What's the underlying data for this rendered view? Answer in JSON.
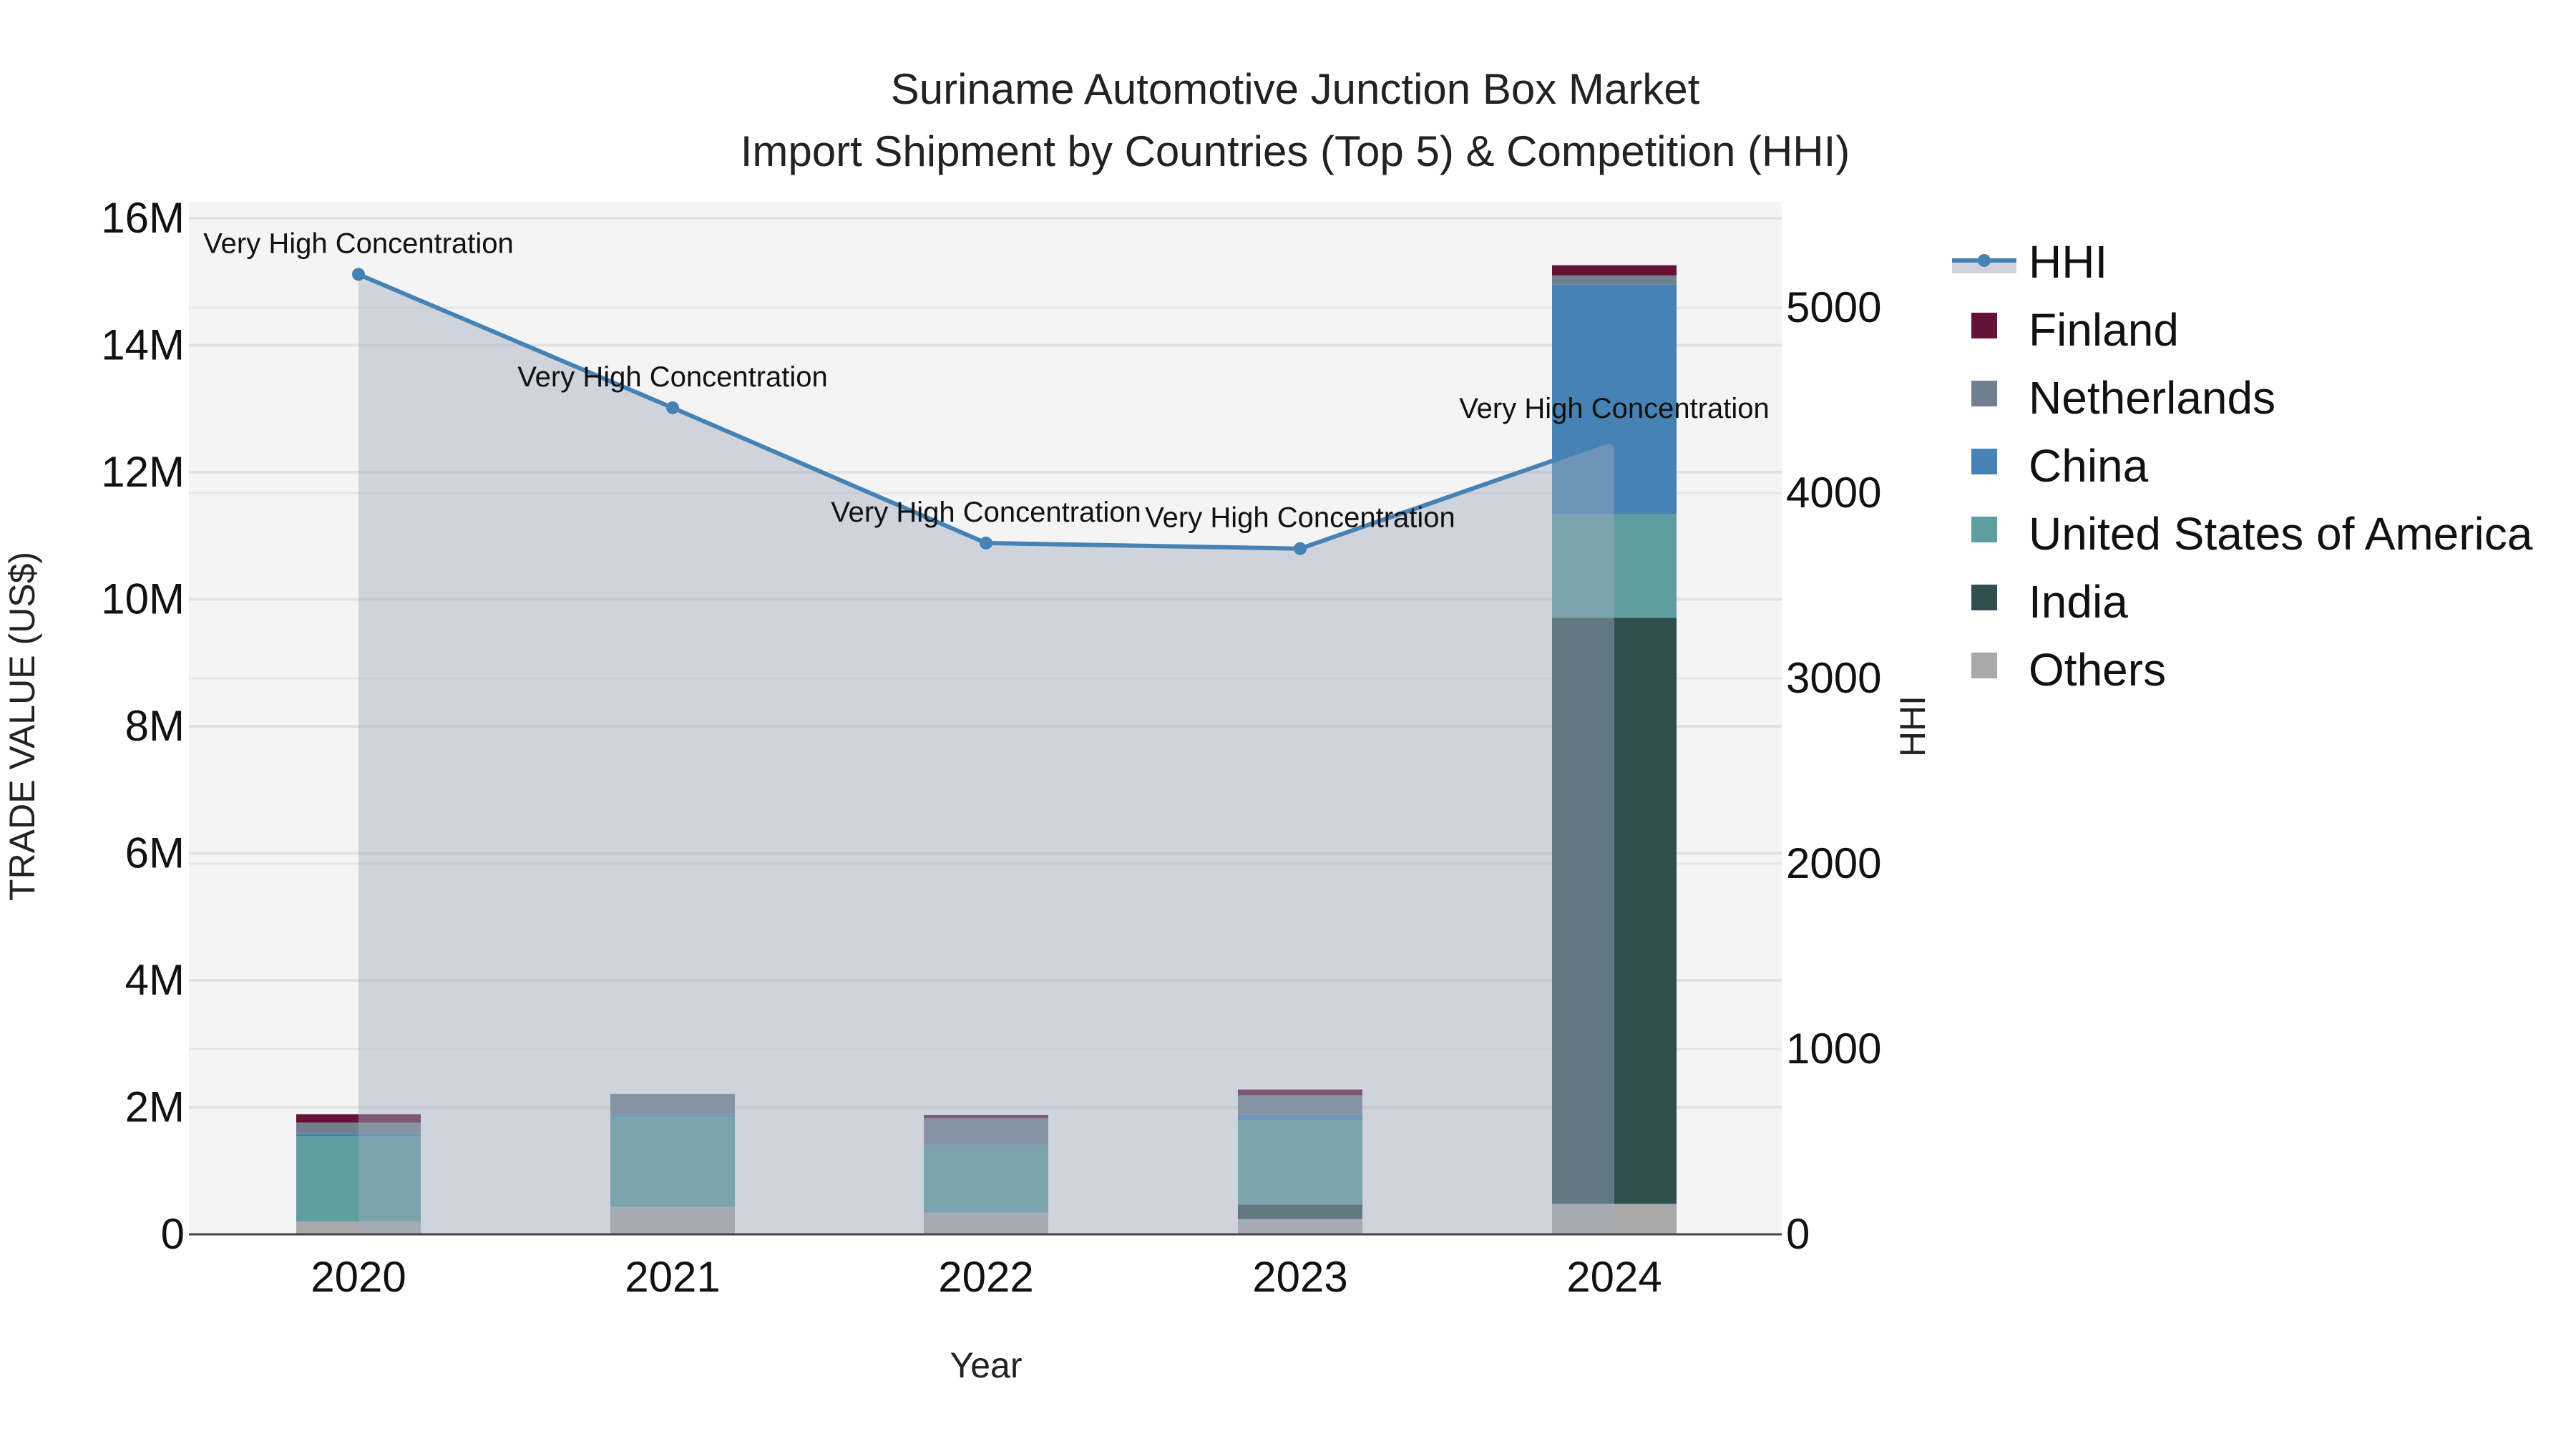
{
  "title": {
    "line1": "Suriname Automotive Junction Box Market",
    "line2": "Import Shipment by Countries (Top 5) & Competition (HHI)"
  },
  "axes": {
    "x_title": "Year",
    "y_left_title": "TRADE VALUE (US$)",
    "y_right_title": "HHI",
    "y_left_ticks": [
      "0",
      "2M",
      "4M",
      "6M",
      "8M",
      "10M",
      "12M",
      "14M",
      "16M"
    ],
    "y_right_ticks": [
      "0",
      "1000",
      "2000",
      "3000",
      "4000",
      "5000"
    ]
  },
  "legend": [
    {
      "name": "HHI",
      "type": "line",
      "color": "#4682b4"
    },
    {
      "name": "Finland",
      "type": "bar",
      "color": "#641237"
    },
    {
      "name": "Netherlands",
      "type": "bar",
      "color": "#708090"
    },
    {
      "name": "China",
      "type": "bar",
      "color": "#4682b4"
    },
    {
      "name": "United States of America",
      "type": "bar",
      "color": "#5f9ea0"
    },
    {
      "name": "India",
      "type": "bar",
      "color": "#2f4f4f"
    },
    {
      "name": "Others",
      "type": "bar",
      "color": "#a9a9a9"
    }
  ],
  "chart_data": {
    "type": "bar",
    "stacked": true,
    "title": "Suriname Automotive Junction Box Market — Import Shipment by Countries (Top 5) & Competition (HHI)",
    "xlabel": "Year",
    "ylabel": "TRADE VALUE (US$)",
    "y2label": "HHI",
    "ylim": [
      0,
      16000000
    ],
    "y2lim": [
      0,
      5500
    ],
    "grid": true,
    "legend_position": "right",
    "categories": [
      "2020",
      "2021",
      "2022",
      "2023",
      "2024"
    ],
    "series": [
      {
        "name": "Others",
        "color": "#a9a9a9",
        "values": [
          200000,
          430000,
          340000,
          240000,
          480000
        ]
      },
      {
        "name": "India",
        "color": "#2f4f4f",
        "values": [
          0,
          0,
          0,
          230000,
          9230000
        ]
      },
      {
        "name": "United States of America",
        "color": "#5f9ea0",
        "values": [
          1340000,
          1430000,
          1060000,
          1330000,
          1630000
        ]
      },
      {
        "name": "China",
        "color": "#4682b4",
        "values": [
          40000,
          30000,
          10000,
          90000,
          3620000
        ]
      },
      {
        "name": "Netherlands",
        "color": "#708090",
        "values": [
          180000,
          320000,
          420000,
          300000,
          140000
        ]
      },
      {
        "name": "Finland",
        "color": "#641237",
        "values": [
          130000,
          0,
          50000,
          90000,
          160000
        ]
      }
    ],
    "line_series": {
      "name": "HHI",
      "axis": "right",
      "color": "#4682b4",
      "fill": "tozeroy",
      "values": [
        5180,
        4460,
        3730,
        3700,
        4290
      ],
      "annotations": [
        "Very High Concentration",
        "Very High Concentration",
        "Very High Concentration",
        "Very High Concentration",
        "Very High Concentration"
      ]
    }
  }
}
